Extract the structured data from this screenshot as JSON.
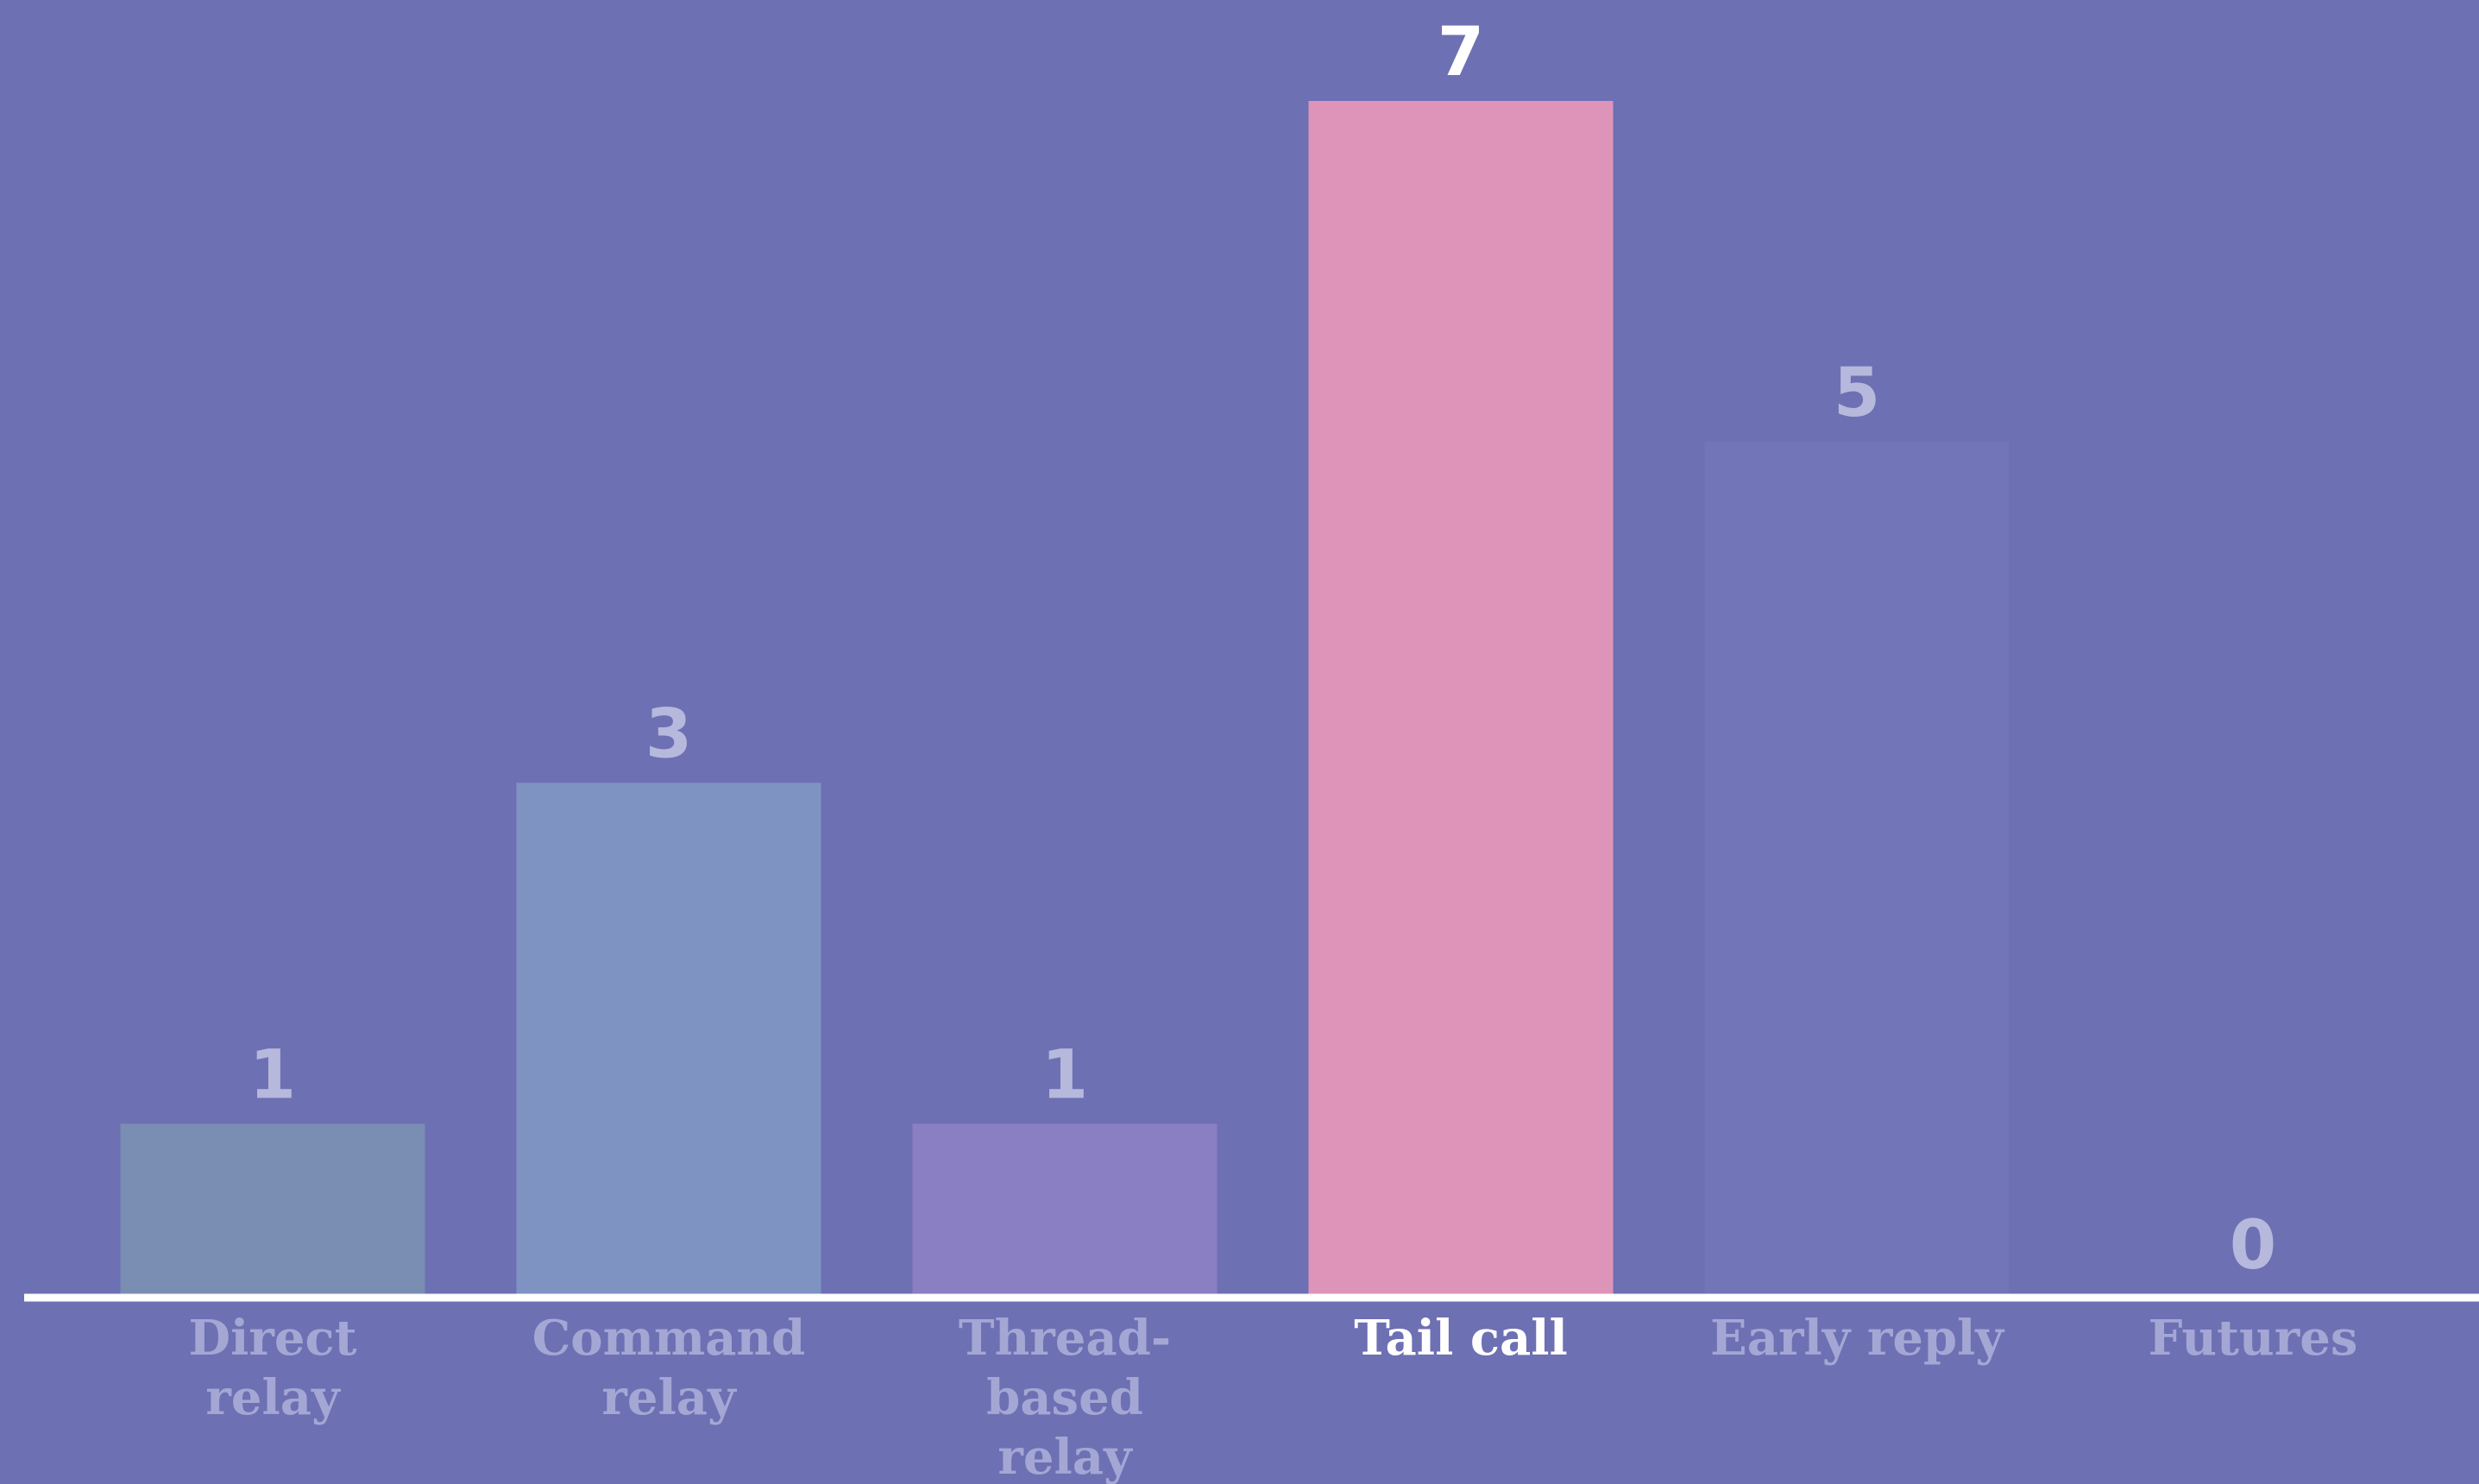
{
  "chart_data": {
    "type": "bar",
    "title": "",
    "xlabel": "",
    "ylabel": "",
    "ylim": [
      0,
      7
    ],
    "grid": false,
    "legend": "none",
    "highlighted_category": "Tail call",
    "categories": [
      [
        "Direct",
        "relay"
      ],
      [
        "Command",
        "relay"
      ],
      [
        "Thread-",
        "based",
        "relay"
      ],
      [
        "Tail call"
      ],
      [
        "Early reply"
      ],
      [
        "Futures"
      ]
    ],
    "values": [
      1,
      3,
      1,
      7,
      5,
      0
    ],
    "value_labels": [
      "1",
      "3",
      "1",
      "7",
      "5",
      "0"
    ]
  },
  "colors": {
    "background": "#6d70b3",
    "axis_line": "#ffffff",
    "bars": [
      "#7a8db2",
      "#7f93c2",
      "#8a7fc2",
      "#de94b8",
      "#7275b8",
      "#6d70b3"
    ],
    "value_label_muted": "#b6b8dc",
    "value_label_highlight": "#ffffff",
    "category_label_muted": "#a4a7d4",
    "category_label_highlight": "#ffffff"
  }
}
